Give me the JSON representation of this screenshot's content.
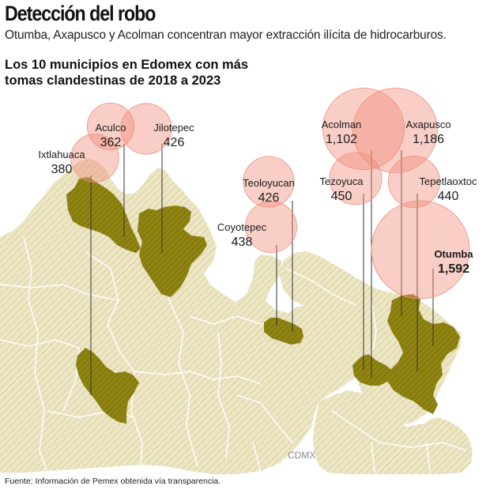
{
  "title": "Detección del robo",
  "subtitle": "Otumba, Axapusco y Acolman concentran mayor extracción ilícita de hidrocarburos.",
  "heading_lines": [
    "Los 10 municipios en Edomex con más",
    "tomas clandestinas de 2018 a 2023"
  ],
  "source": "Fuente: Información de Pemex obtenida vía transparencia.",
  "map_label": "CDMX",
  "colors": {
    "bubble_fill": "#f08a78",
    "bubble_stroke": "#ee8f7f",
    "territory_fill": "#ece6c4",
    "territory_hatch": "#c9bf8d",
    "highlight_fill": "#8f8412",
    "highlight_hatch": "#6f6608",
    "border": "#ffffff",
    "leader": "#333333"
  },
  "chart_data": {
    "type": "bubble-map",
    "title": "Los 10 municipios en Edomex con más tomas clandestinas de 2018 a 2023",
    "unit": "tomas clandestinas",
    "municipalities": [
      {
        "name": "Otumba",
        "value": 1592,
        "display": "1,592"
      },
      {
        "name": "Axapusco",
        "value": 1186,
        "display": "1,186"
      },
      {
        "name": "Acolman",
        "value": 1102,
        "display": "1,102"
      },
      {
        "name": "Tezoyuca",
        "value": 450,
        "display": "450"
      },
      {
        "name": "Tepetlaoxtoc",
        "value": 440,
        "display": "440"
      },
      {
        "name": "Coyotepec",
        "value": 438,
        "display": "438"
      },
      {
        "name": "Jilotepec",
        "value": 426,
        "display": "426"
      },
      {
        "name": "Teoloyucan",
        "value": 426,
        "display": "426"
      },
      {
        "name": "Ixtlahuaca",
        "value": 380,
        "display": "380"
      },
      {
        "name": "Aculco",
        "value": 362,
        "display": "362"
      }
    ]
  }
}
